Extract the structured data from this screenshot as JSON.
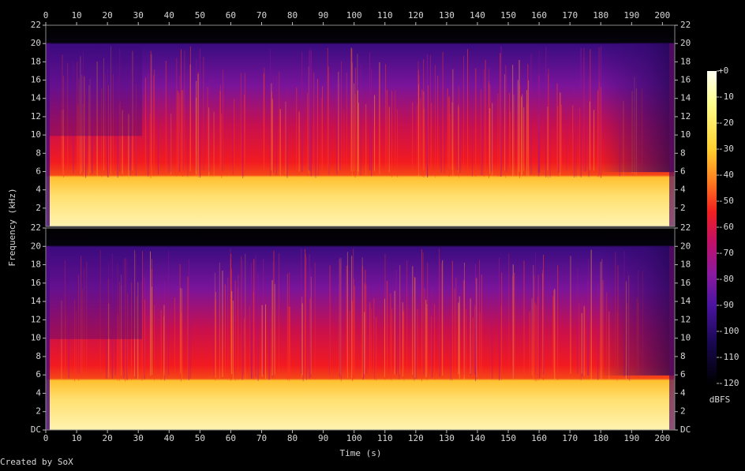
{
  "chart_data": {
    "type": "spectrogram",
    "x_label": "Time (s)",
    "y_label": "Frequency (kHz)",
    "xlim": [
      0,
      204
    ],
    "xticks": [
      0,
      10,
      20,
      30,
      40,
      50,
      60,
      70,
      80,
      90,
      100,
      110,
      120,
      130,
      140,
      150,
      160,
      170,
      180,
      190,
      200
    ],
    "channels": [
      {
        "ylim": [
          0,
          22
        ],
        "yticks": [
          2,
          4,
          6,
          8,
          10,
          12,
          14,
          16,
          18,
          20,
          22
        ]
      },
      {
        "ylim": [
          0,
          22
        ],
        "yticks": [
          {
            "value": 0,
            "label": "DC"
          },
          2,
          4,
          6,
          8,
          10,
          12,
          14,
          16,
          18,
          20,
          22
        ]
      }
    ],
    "colorbar": {
      "label": "dBFS",
      "ylim": [
        -120,
        0
      ],
      "yticks": [
        {
          "value": 0,
          "label": "+0"
        },
        -10,
        -20,
        -30,
        -40,
        -50,
        -60,
        -70,
        -80,
        -90,
        -100,
        -110,
        -120
      ]
    },
    "footer": "Created by SoX"
  }
}
